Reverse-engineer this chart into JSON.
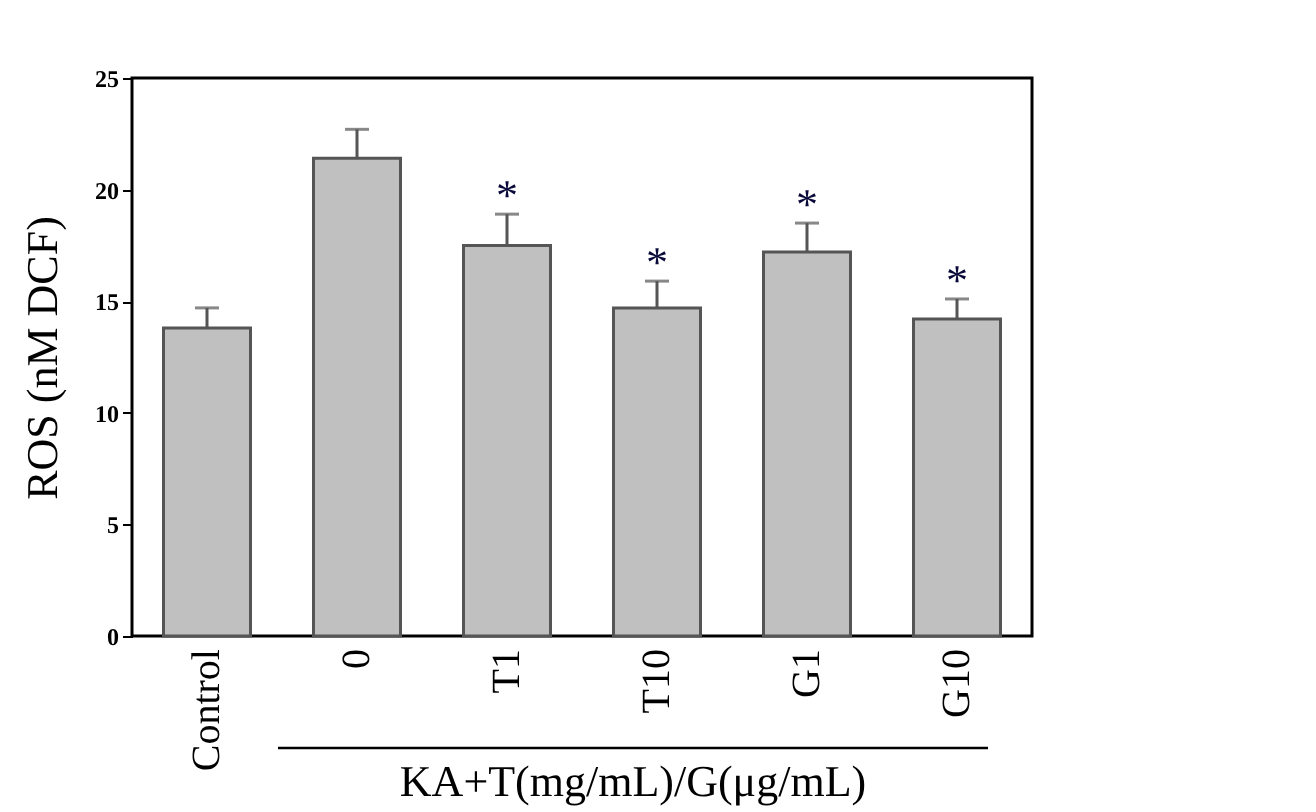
{
  "chart_data": {
    "type": "bar",
    "ylabel": "ROS (nM DCF)",
    "xlabel": "KA+T(mg/mL)/G(μg/mL)",
    "categories": [
      "Control",
      "0",
      "T1",
      "T10",
      "G1",
      "G10"
    ],
    "values": [
      13.8,
      21.4,
      17.5,
      14.7,
      17.2,
      14.2
    ],
    "errors": [
      [
        13.8,
        14.7
      ],
      [
        21.4,
        22.7
      ],
      [
        17.5,
        18.9
      ],
      [
        14.7,
        15.9
      ],
      [
        17.2,
        18.5
      ],
      [
        14.2,
        15.1
      ]
    ],
    "color": "#c0c0c0",
    "ylim": [
      0,
      25
    ],
    "yticks": [
      0,
      5,
      10,
      15,
      20,
      25
    ],
    "grid": false,
    "annotations": [
      "*",
      "*",
      "*",
      "*"
    ]
  }
}
